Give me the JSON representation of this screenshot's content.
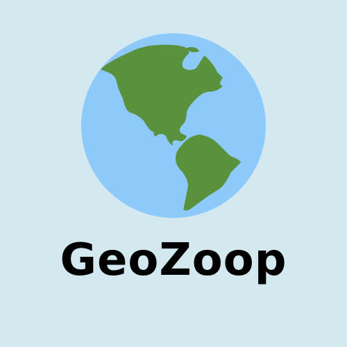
{
  "logo": {
    "brand_name": "GeoZoop",
    "icon": "globe-americas-icon",
    "colors": {
      "background": "#d3e8ef",
      "ocean": "#8ec9fb",
      "land": "#5a913d",
      "text": "#000000"
    }
  }
}
